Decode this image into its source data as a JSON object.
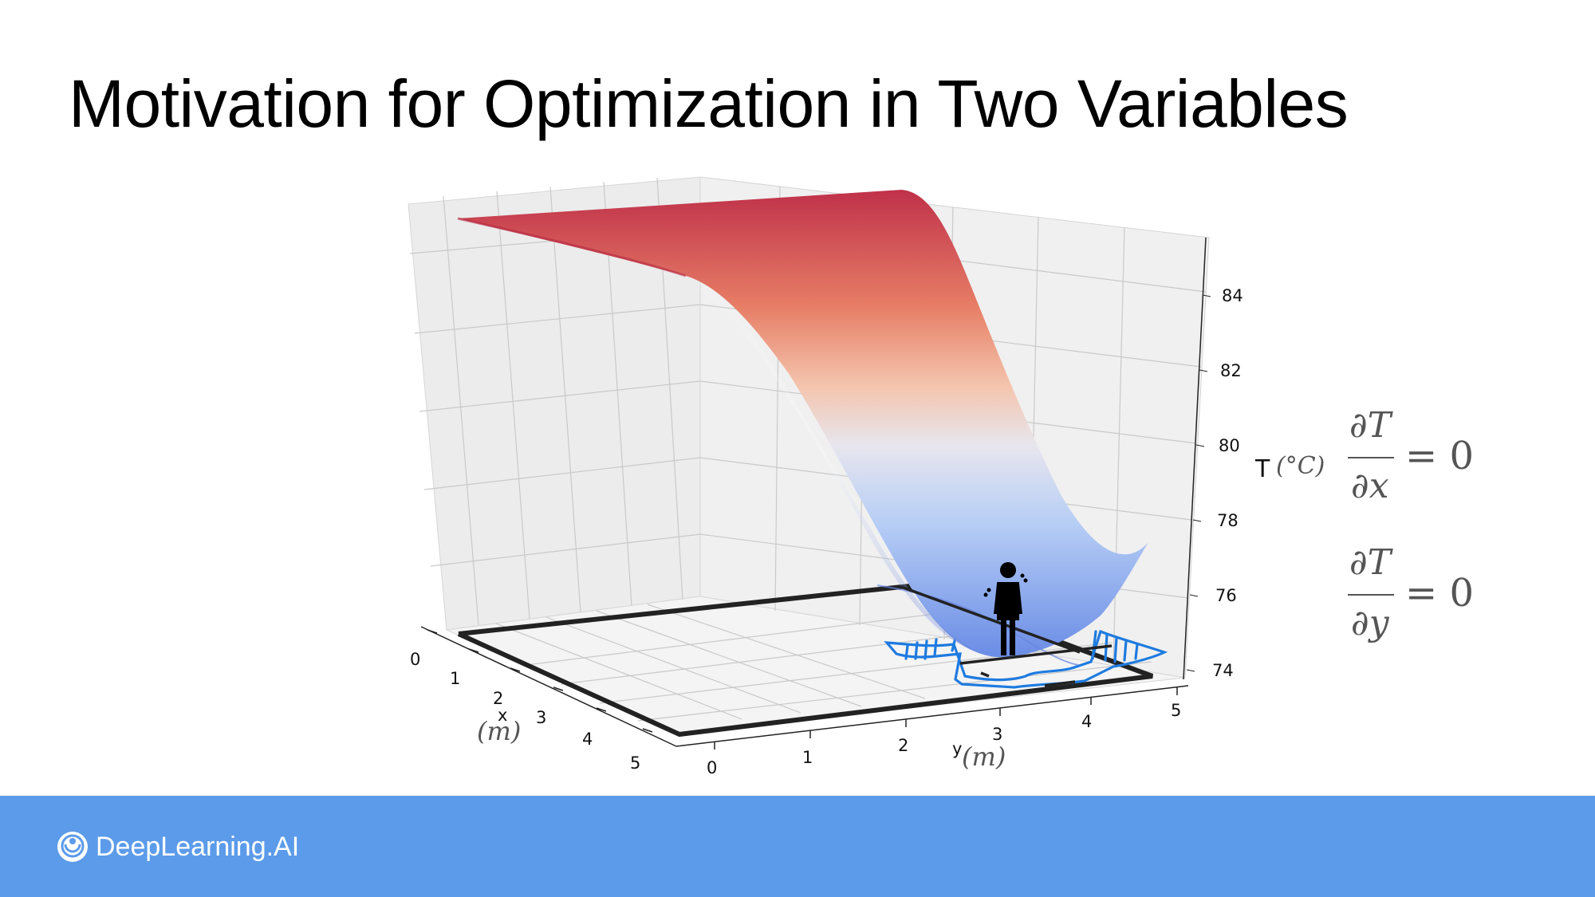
{
  "slide": {
    "title": "Motivation for Optimization in Two Variables"
  },
  "plot": {
    "x_label": "x",
    "x_unit": "(m)",
    "y_label": "y",
    "y_unit": "(m)",
    "z_label": "T",
    "z_unit": "(°C)",
    "x_ticks": [
      "0",
      "1",
      "2",
      "3",
      "4",
      "5"
    ],
    "y_ticks": [
      "0",
      "1",
      "2",
      "3",
      "4",
      "5"
    ],
    "z_ticks": [
      "74",
      "76",
      "78",
      "80",
      "82",
      "84"
    ],
    "surface_colors": {
      "high": "#c0324a",
      "mid": "#e8e8ee",
      "low": "#6f8fe8"
    },
    "accent_colors": {
      "sketch": "#1e7be0",
      "frame": "#222222"
    }
  },
  "equations": {
    "partial_symbol": "∂T",
    "eq1_denominator": "∂x",
    "eq2_denominator": "∂y",
    "equals_zero": "= 0"
  },
  "footer": {
    "brand": "DeepLearning.AI",
    "color": "#5b9bea"
  }
}
